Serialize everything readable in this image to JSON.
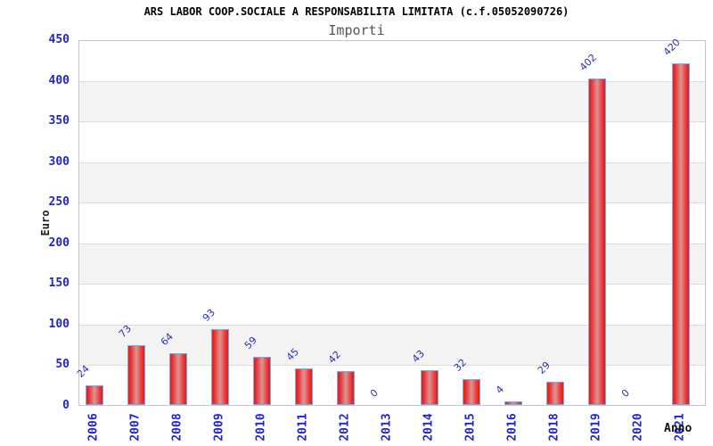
{
  "chart_data": {
    "type": "bar",
    "title": "ARS LABOR COOP.SOCIALE A RESPONSABILITA LIMITATA (c.f.05052090726)",
    "subtitle": "Importi",
    "xlabel": "Anno",
    "ylabel": "Euro",
    "categories": [
      "2006",
      "2007",
      "2008",
      "2009",
      "2010",
      "2011",
      "2012",
      "2013",
      "2014",
      "2015",
      "2016",
      "2018",
      "2019",
      "2020",
      "2021"
    ],
    "values": [
      24,
      73,
      64,
      93,
      59,
      45,
      42,
      0,
      43,
      32,
      4,
      29,
      402,
      0,
      420
    ],
    "ylim": [
      0,
      450
    ],
    "ytick_step": 50,
    "grid": "horizontal gridlines every 50 with alternating white/gray bands",
    "legend_position": "none",
    "colors": {
      "bar_edge_red": "#e41a1a",
      "bar_bright_red": "#ea2f2f",
      "bar_center_light": "#dd9595",
      "bar_border_blue": "#6fb0f2",
      "value_label_blue": "#2c2cc0",
      "tick_label_blue": "#2323cc",
      "band_gray": "#f3f3f3",
      "gridline_gray": "#dddddd",
      "plot_border_gray": "#c6c6c6",
      "title_black": "#000000",
      "subtitle_gray": "#555555"
    }
  }
}
